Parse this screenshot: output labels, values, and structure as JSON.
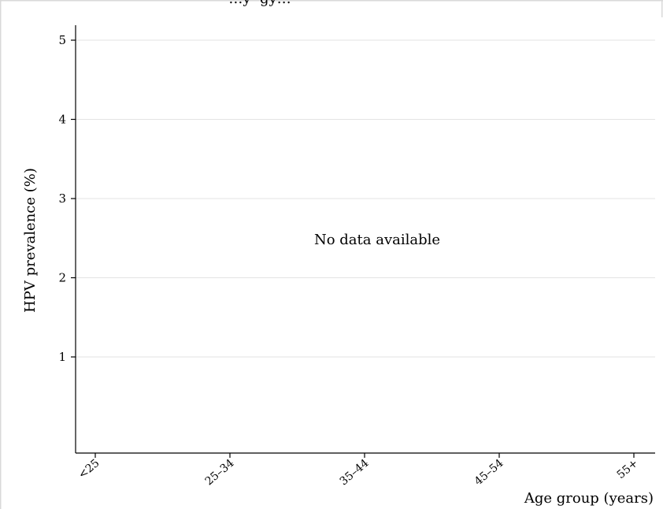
{
  "chart_data": {
    "type": "scatter",
    "title": "…y  gy…",
    "xlabel": "Age group (years)",
    "ylabel": "HPV prevalence (%)",
    "categories": [
      "<25",
      "25–34",
      "35–44",
      "45–54",
      "55+"
    ],
    "yticks": [
      1,
      2,
      3,
      4,
      5
    ],
    "ylim": [
      0,
      5.2
    ],
    "grid": true,
    "series": [],
    "annotation": "No data available"
  }
}
